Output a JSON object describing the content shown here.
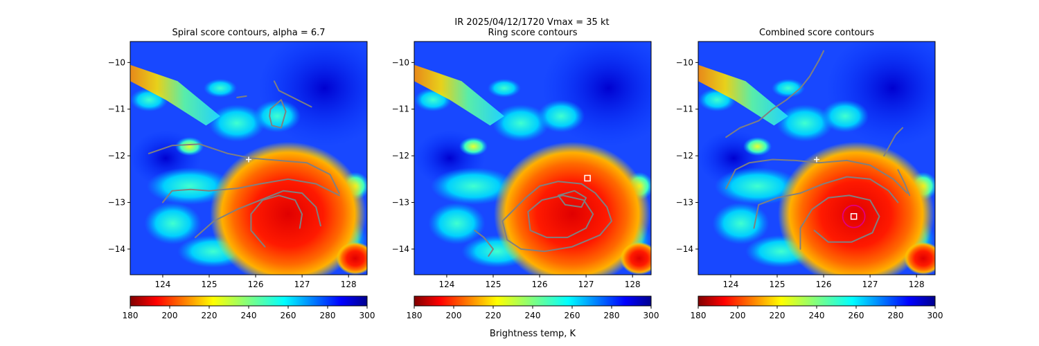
{
  "figure": {
    "suptitle_line1": "IR  2025/04/12/1720    Vmax = 35 kt",
    "colorbar_label": "Brightness temp, K"
  },
  "colors": {
    "contour": "#808080",
    "marker_ring": "#e0007f",
    "marker_square": "#ffffff",
    "colormap": "jet_reversed"
  },
  "chart_data": [
    {
      "type": "heatmap",
      "title": "Spiral score contours, alpha =  6.7",
      "xlim": [
        123.3,
        128.4
      ],
      "ylim": [
        -14.55,
        -9.55
      ],
      "x_ticks": [
        "124",
        "125",
        "126",
        "127",
        "128"
      ],
      "y_ticks": [
        "−10",
        "−11",
        "−12",
        "−13",
        "−14"
      ],
      "colorbar": {
        "range": [
          180,
          300
        ],
        "ticks": [
          "180",
          "200",
          "220",
          "240",
          "260",
          "280",
          "300"
        ]
      },
      "markers": [
        {
          "kind": "plus",
          "lon": 125.85,
          "lat": -12.08
        }
      ],
      "contours": [
        [
          [
            123.7,
            -11.95
          ],
          [
            124.2,
            -11.78
          ],
          [
            124.8,
            -11.75
          ],
          [
            125.4,
            -11.95
          ],
          [
            125.9,
            -12.05
          ],
          [
            126.5,
            -12.1
          ],
          [
            127.1,
            -12.15
          ],
          [
            127.6,
            -12.4
          ],
          [
            127.8,
            -12.8
          ]
        ],
        [
          [
            124.0,
            -13.0
          ],
          [
            124.2,
            -12.75
          ],
          [
            124.6,
            -12.72
          ],
          [
            125.0,
            -12.75
          ],
          [
            125.6,
            -12.7
          ],
          [
            126.1,
            -12.6
          ],
          [
            126.7,
            -12.5
          ],
          [
            127.3,
            -12.6
          ],
          [
            127.8,
            -12.85
          ]
        ],
        [
          [
            124.7,
            -13.75
          ],
          [
            125.1,
            -13.4
          ],
          [
            125.6,
            -13.15
          ],
          [
            126.1,
            -12.95
          ],
          [
            126.6,
            -12.75
          ],
          [
            127.0,
            -12.8
          ],
          [
            127.3,
            -13.1
          ],
          [
            127.4,
            -13.5
          ]
        ],
        [
          [
            126.2,
            -13.95
          ],
          [
            125.9,
            -13.6
          ],
          [
            125.9,
            -13.25
          ],
          [
            126.15,
            -12.95
          ],
          [
            126.5,
            -12.85
          ],
          [
            126.85,
            -12.95
          ],
          [
            127.0,
            -13.25
          ],
          [
            126.95,
            -13.55
          ]
        ],
        [
          [
            126.32,
            -11.0
          ],
          [
            126.55,
            -10.8
          ],
          [
            126.65,
            -11.05
          ],
          [
            126.55,
            -11.4
          ],
          [
            126.35,
            -11.35
          ],
          [
            126.3,
            -11.15
          ],
          [
            126.32,
            -11.0
          ]
        ],
        [
          [
            126.4,
            -10.4
          ],
          [
            126.5,
            -10.6
          ],
          [
            126.8,
            -10.75
          ],
          [
            127.0,
            -10.85
          ],
          [
            127.2,
            -10.95
          ]
        ],
        [
          [
            125.6,
            -10.75
          ],
          [
            125.8,
            -10.72
          ]
        ]
      ]
    },
    {
      "type": "heatmap",
      "title": "Ring score contours",
      "xlim": [
        123.3,
        128.4
      ],
      "ylim": [
        -14.55,
        -9.55
      ],
      "x_ticks": [
        "124",
        "125",
        "126",
        "127",
        "128"
      ],
      "y_ticks": [
        "−10",
        "−11",
        "−12",
        "−13",
        "−14"
      ],
      "colorbar": {
        "range": [
          180,
          300
        ],
        "ticks": [
          "180",
          "200",
          "220",
          "240",
          "260",
          "280",
          "300"
        ]
      },
      "markers": [
        {
          "kind": "square",
          "lon": 127.03,
          "lat": -12.48
        }
      ],
      "contours": [
        [
          [
            125.3,
            -13.8
          ],
          [
            125.2,
            -13.4
          ],
          [
            125.5,
            -13.1
          ],
          [
            125.7,
            -12.9
          ],
          [
            126.0,
            -12.65
          ],
          [
            126.4,
            -12.55
          ],
          [
            126.9,
            -12.6
          ],
          [
            127.2,
            -12.8
          ],
          [
            127.45,
            -13.1
          ],
          [
            127.55,
            -13.4
          ],
          [
            127.3,
            -13.7
          ],
          [
            126.7,
            -13.95
          ],
          [
            126.1,
            -14.05
          ],
          [
            125.6,
            -14.0
          ],
          [
            125.3,
            -13.8
          ]
        ],
        [
          [
            125.8,
            -13.6
          ],
          [
            125.75,
            -13.2
          ],
          [
            126.05,
            -12.95
          ],
          [
            126.5,
            -12.85
          ],
          [
            126.95,
            -12.95
          ],
          [
            127.15,
            -13.25
          ],
          [
            127.0,
            -13.55
          ],
          [
            126.6,
            -13.75
          ],
          [
            126.15,
            -13.75
          ],
          [
            125.8,
            -13.6
          ]
        ],
        [
          [
            126.4,
            -12.85
          ],
          [
            126.75,
            -12.75
          ],
          [
            127.0,
            -12.9
          ],
          [
            126.9,
            -13.1
          ],
          [
            126.55,
            -13.05
          ],
          [
            126.4,
            -12.85
          ]
        ],
        [
          [
            124.6,
            -13.6
          ],
          [
            124.8,
            -13.75
          ],
          [
            125.0,
            -14.0
          ],
          [
            124.9,
            -14.15
          ]
        ]
      ]
    },
    {
      "type": "heatmap",
      "title": "Combined score contours",
      "xlim": [
        123.3,
        128.4
      ],
      "ylim": [
        -14.55,
        -9.55
      ],
      "x_ticks": [
        "124",
        "125",
        "126",
        "127",
        "128"
      ],
      "y_ticks": [
        "−10",
        "−11",
        "−12",
        "−13",
        "−14"
      ],
      "colorbar": {
        "range": [
          180,
          300
        ],
        "ticks": [
          "180",
          "200",
          "220",
          "240",
          "260",
          "280",
          "300"
        ]
      },
      "markers": [
        {
          "kind": "plus",
          "lon": 125.85,
          "lat": -12.08
        },
        {
          "kind": "ring",
          "lon": 126.65,
          "lat": -13.3
        },
        {
          "kind": "square",
          "lon": 126.65,
          "lat": -13.3
        }
      ],
      "contours": [
        [
          [
            123.9,
            -11.6
          ],
          [
            124.2,
            -11.4
          ],
          [
            124.6,
            -11.25
          ],
          [
            124.9,
            -11.0
          ],
          [
            125.2,
            -10.8
          ],
          [
            125.5,
            -10.55
          ],
          [
            125.7,
            -10.3
          ],
          [
            125.9,
            -9.95
          ],
          [
            126.0,
            -9.75
          ]
        ],
        [
          [
            123.9,
            -12.7
          ],
          [
            124.1,
            -12.3
          ],
          [
            124.4,
            -12.15
          ],
          [
            124.9,
            -12.08
          ],
          [
            125.4,
            -12.1
          ],
          [
            125.9,
            -12.15
          ],
          [
            126.5,
            -12.1
          ],
          [
            127.0,
            -12.2
          ],
          [
            127.5,
            -12.5
          ],
          [
            127.8,
            -12.8
          ]
        ],
        [
          [
            124.5,
            -13.55
          ],
          [
            124.6,
            -13.05
          ],
          [
            125.0,
            -12.9
          ],
          [
            125.5,
            -12.8
          ],
          [
            126.0,
            -12.6
          ],
          [
            126.5,
            -12.45
          ],
          [
            127.0,
            -12.5
          ],
          [
            127.4,
            -12.75
          ],
          [
            127.6,
            -13.0
          ]
        ],
        [
          [
            125.5,
            -14.0
          ],
          [
            125.5,
            -13.55
          ],
          [
            125.75,
            -13.15
          ],
          [
            126.1,
            -12.9
          ],
          [
            126.55,
            -12.85
          ],
          [
            127.0,
            -12.95
          ],
          [
            127.2,
            -13.3
          ],
          [
            127.05,
            -13.65
          ],
          [
            126.6,
            -13.85
          ],
          [
            126.1,
            -13.85
          ],
          [
            125.8,
            -13.6
          ]
        ],
        [
          [
            127.3,
            -12.0
          ],
          [
            127.55,
            -11.55
          ],
          [
            127.7,
            -11.4
          ]
        ],
        [
          [
            127.6,
            -12.3
          ],
          [
            127.75,
            -12.6
          ],
          [
            127.85,
            -12.85
          ]
        ]
      ]
    }
  ]
}
